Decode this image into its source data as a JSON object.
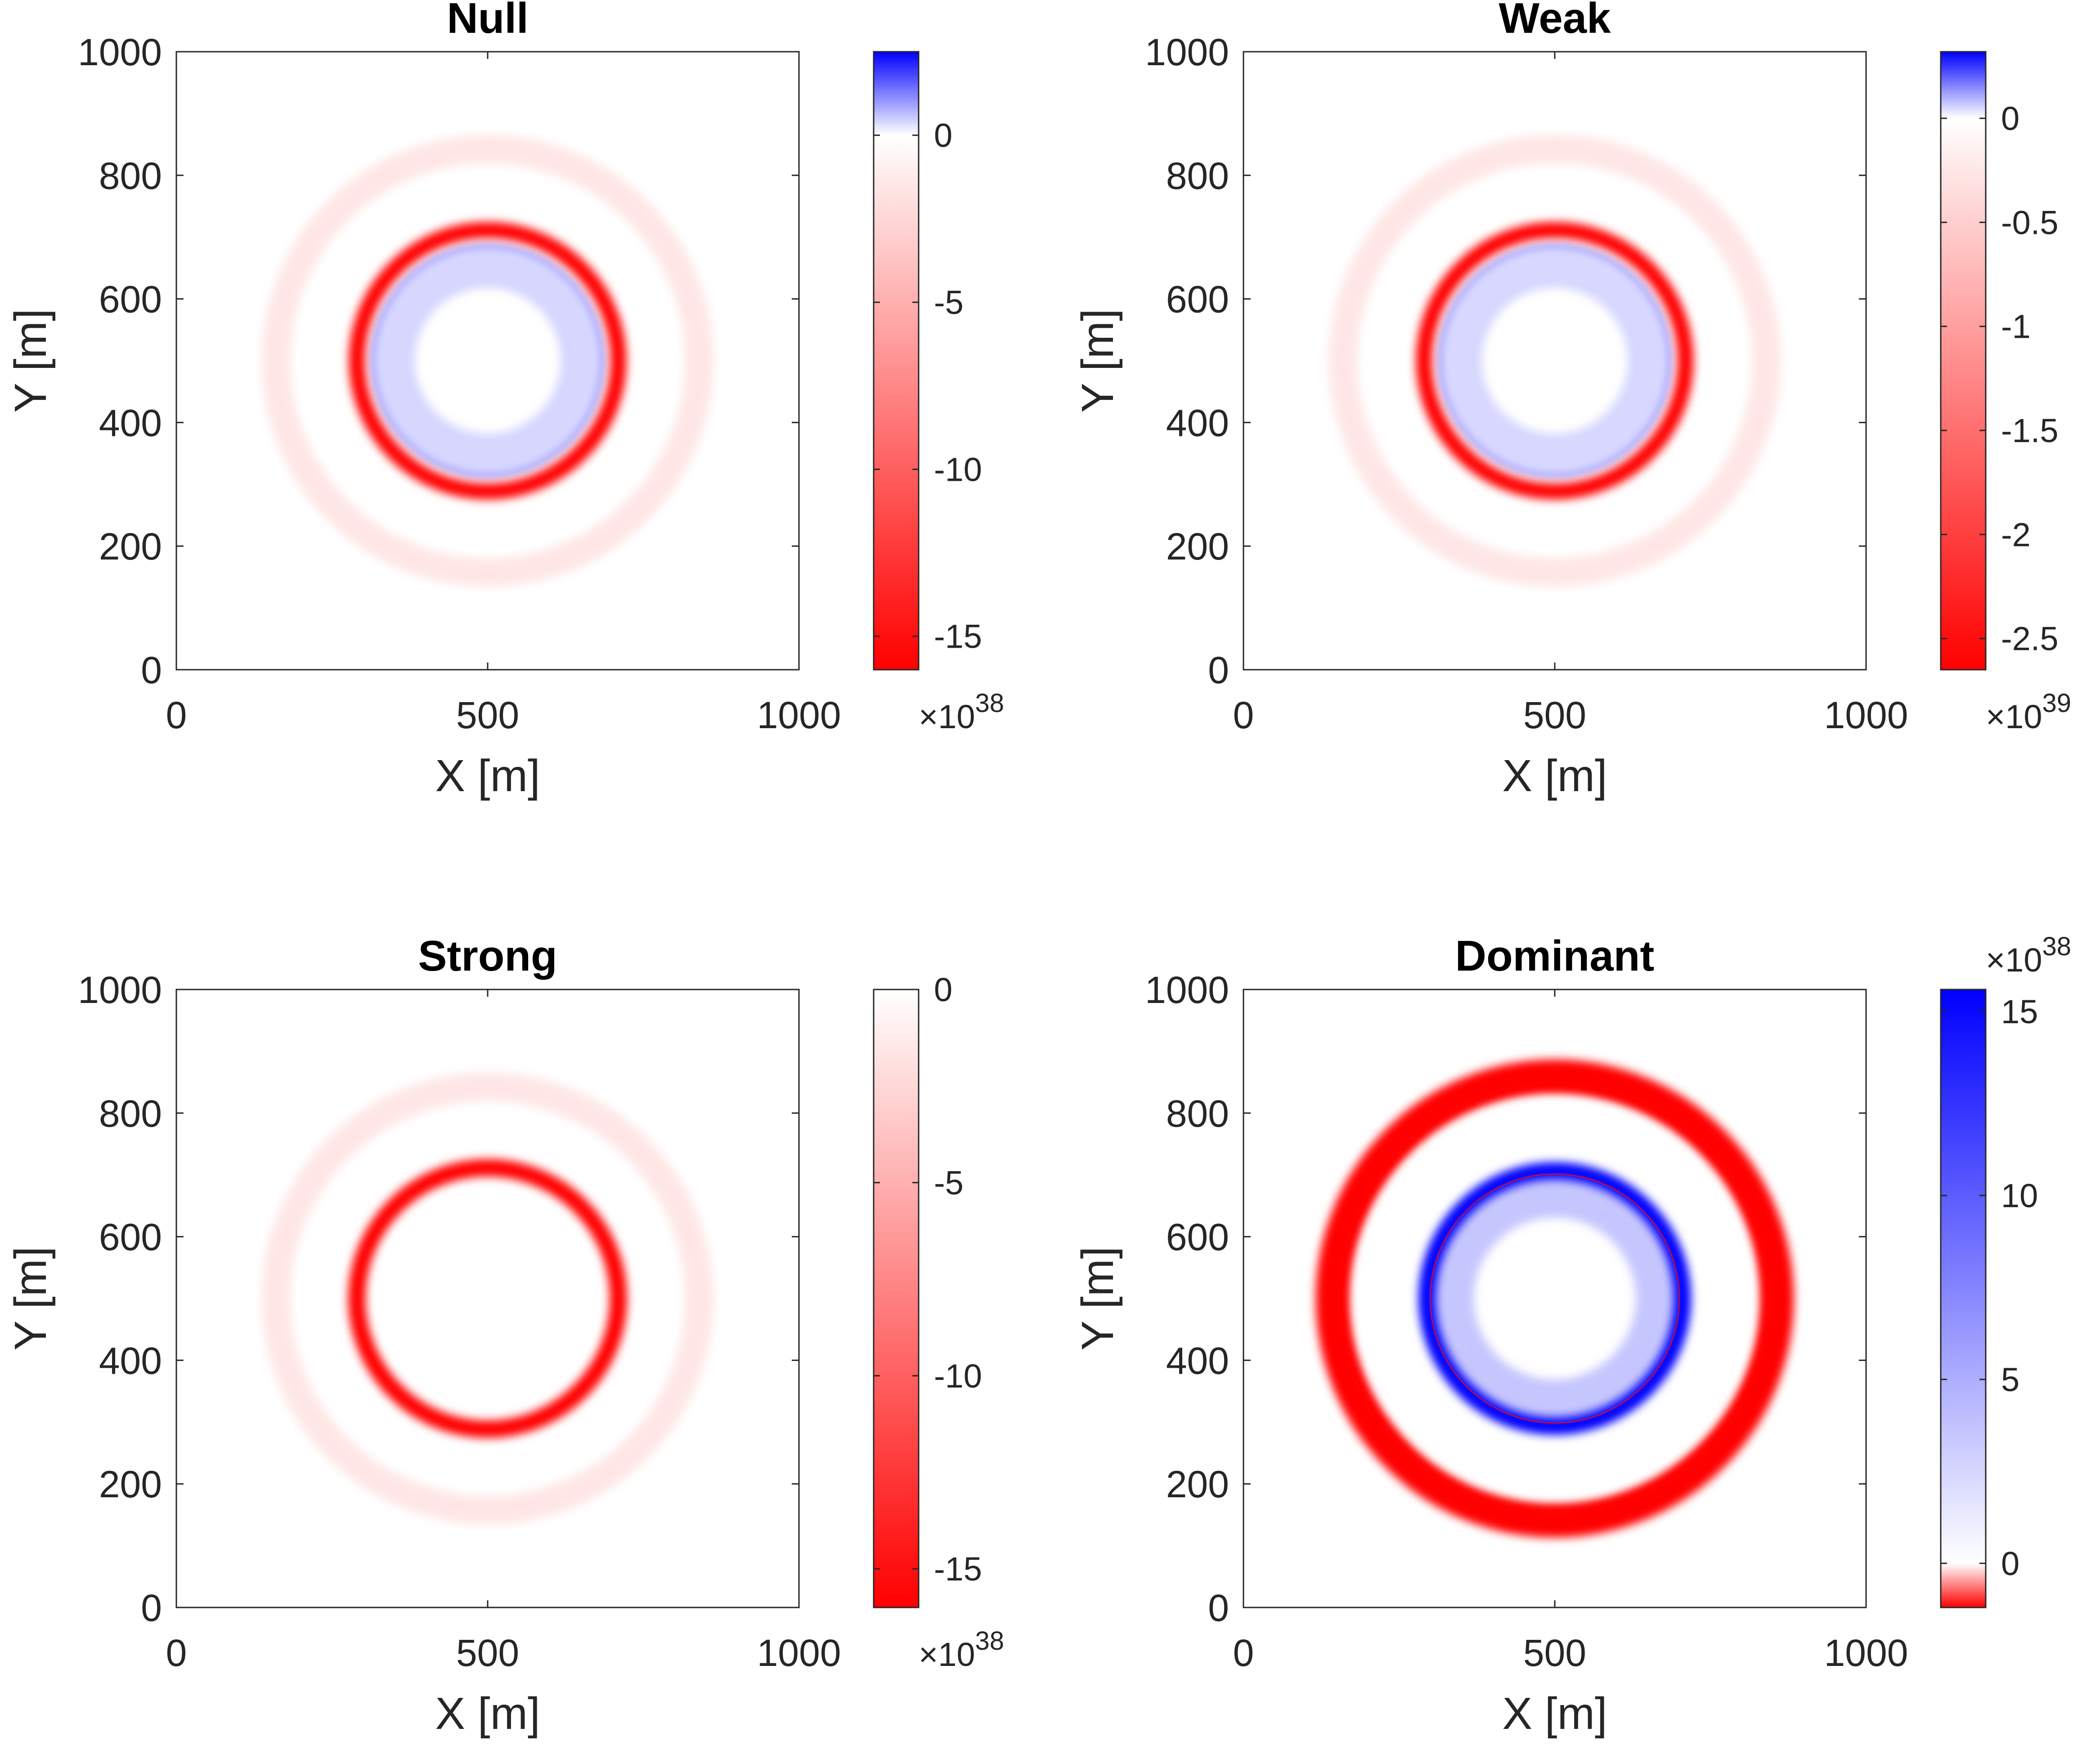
{
  "colors": {
    "positive": "#0000ff",
    "zero": "#ffffff",
    "negative": "#ff0000",
    "axis": "#262626"
  },
  "chart_data": [
    {
      "type": "heatmap",
      "title": "Null",
      "xlabel": "X [m]",
      "ylabel": "Y [m]",
      "xlim": [
        0,
        1000
      ],
      "ylim": [
        0,
        1000
      ],
      "xticks": [
        "0",
        "500",
        "1000"
      ],
      "yticks": [
        "0",
        "200",
        "400",
        "600",
        "800",
        "1000"
      ],
      "colorbar": {
        "range": [
          -16,
          2.5
        ],
        "ticks": [
          {
            "value": 0,
            "label": "0"
          },
          {
            "value": -5,
            "label": "-5"
          },
          {
            "value": -10,
            "label": "-10"
          },
          {
            "value": -15,
            "label": "-15"
          }
        ],
        "multiplier_base": "×10",
        "multiplier_exp": "38",
        "multiplier_pos": "bottom"
      },
      "rings": [
        {
          "radius": 168,
          "value": 2.5,
          "width": 28
        },
        {
          "radius": 152,
          "value": 0.4,
          "width": 70
        },
        {
          "radius": 210,
          "value": -16,
          "width": 26
        },
        {
          "radius": 340,
          "value": -1.6,
          "width": 46
        }
      ]
    },
    {
      "type": "heatmap",
      "title": "Weak",
      "xlabel": "X [m]",
      "ylabel": "Y [m]",
      "xlim": [
        0,
        1000
      ],
      "ylim": [
        0,
        1000
      ],
      "xticks": [
        "0",
        "500",
        "1000"
      ],
      "yticks": [
        "0",
        "200",
        "400",
        "600",
        "800",
        "1000"
      ],
      "colorbar": {
        "range": [
          -2.65,
          0.32
        ],
        "ticks": [
          {
            "value": 0,
            "label": "0"
          },
          {
            "value": -0.5,
            "label": "-0.5"
          },
          {
            "value": -1,
            "label": "-1"
          },
          {
            "value": -1.5,
            "label": "-1.5"
          },
          {
            "value": -2,
            "label": "-2"
          },
          {
            "value": -2.5,
            "label": "-2.5"
          }
        ],
        "multiplier_base": "×10",
        "multiplier_exp": "39",
        "multiplier_pos": "bottom"
      },
      "rings": [
        {
          "radius": 168,
          "value": 0.32,
          "width": 28
        },
        {
          "radius": 152,
          "value": 0.05,
          "width": 70
        },
        {
          "radius": 210,
          "value": -2.65,
          "width": 26
        },
        {
          "radius": 340,
          "value": -0.26,
          "width": 46
        }
      ]
    },
    {
      "type": "heatmap",
      "title": "Strong",
      "xlabel": "X [m]",
      "ylabel": "Y [m]",
      "xlim": [
        0,
        1000
      ],
      "ylim": [
        0,
        1000
      ],
      "xticks": [
        "0",
        "500",
        "1000"
      ],
      "yticks": [
        "0",
        "200",
        "400",
        "600",
        "800",
        "1000"
      ],
      "colorbar": {
        "range": [
          -16,
          0
        ],
        "ticks": [
          {
            "value": 0,
            "label": "0"
          },
          {
            "value": -5,
            "label": "-5"
          },
          {
            "value": -10,
            "label": "-10"
          },
          {
            "value": -15,
            "label": "-15"
          }
        ],
        "multiplier_base": "×10",
        "multiplier_exp": "38",
        "multiplier_pos": "bottom"
      },
      "rings": [
        {
          "radius": 210,
          "value": -16,
          "width": 28
        },
        {
          "radius": 340,
          "value": -1.6,
          "width": 46
        }
      ]
    },
    {
      "type": "heatmap",
      "title": "Dominant",
      "xlabel": "X [m]",
      "ylabel": "Y [m]",
      "xlim": [
        0,
        1000
      ],
      "ylim": [
        0,
        1000
      ],
      "xticks": [
        "0",
        "500",
        "1000"
      ],
      "yticks": [
        "0",
        "200",
        "400",
        "600",
        "800",
        "1000"
      ],
      "colorbar": {
        "range": [
          -1.2,
          15.6
        ],
        "ticks": [
          {
            "value": 0,
            "label": "0"
          },
          {
            "value": 5,
            "label": "5"
          },
          {
            "value": 10,
            "label": "10"
          },
          {
            "value": 15,
            "label": "15"
          }
        ],
        "multiplier_base": "×10",
        "multiplier_exp": "38",
        "multiplier_pos": "top"
      },
      "rings": [
        {
          "radius": 165,
          "value": 3.5,
          "width": 70
        },
        {
          "radius": 205,
          "value": 15.6,
          "width": 28
        },
        {
          "radius": 345,
          "value": -1.2,
          "width": 28
        },
        {
          "radius": 360,
          "value": -1.2,
          "width": 48
        },
        {
          "radius": 200,
          "value": -1.2,
          "width": 2
        }
      ]
    }
  ]
}
